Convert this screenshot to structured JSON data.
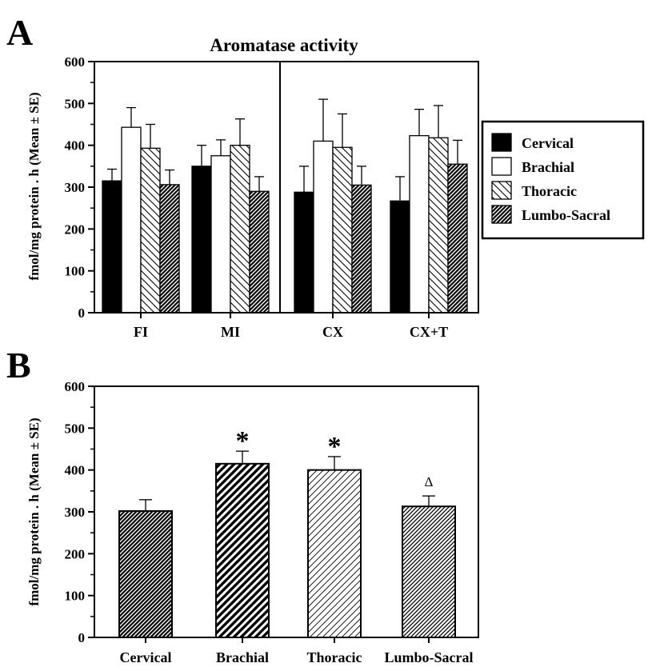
{
  "figure": {
    "panel_a_letter": "A",
    "panel_b_letter": "B"
  },
  "chart_data": [
    {
      "type": "bar",
      "title": "Aromatase activity",
      "ylabel": "fmol/mg protein . h (Mean ± SE)",
      "xlabel": "",
      "ylim": [
        0,
        600
      ],
      "yticks": [
        0,
        100,
        200,
        300,
        400,
        500,
        600
      ],
      "categories": [
        "FI",
        "MI",
        "CX",
        "CX+T"
      ],
      "series": [
        {
          "name": "Cervical",
          "pattern": "solid-black",
          "values": [
            315,
            350,
            288,
            267
          ],
          "errors": [
            28,
            50,
            62,
            58
          ]
        },
        {
          "name": "Brachial",
          "pattern": "white",
          "values": [
            443,
            375,
            410,
            423
          ],
          "errors": [
            47,
            38,
            100,
            63
          ]
        },
        {
          "name": "Thoracic",
          "pattern": "sparse-hatch",
          "values": [
            393,
            400,
            395,
            418
          ],
          "errors": [
            57,
            63,
            80,
            77
          ]
        },
        {
          "name": "Lumbo-Sacral",
          "pattern": "dense-hatch",
          "values": [
            306,
            290,
            305,
            355
          ],
          "errors": [
            35,
            35,
            45,
            57
          ]
        }
      ],
      "divider_after_category": 1,
      "legend_placement": "right",
      "grid": false
    },
    {
      "type": "bar",
      "title": "",
      "ylabel": "fmol/mg protein . h (Mean ± SE)",
      "xlabel": "",
      "ylim": [
        0,
        600
      ],
      "yticks": [
        0,
        100,
        200,
        300,
        400,
        500,
        600
      ],
      "categories": [
        "Cervical",
        "Brachial",
        "Thoracic",
        "Lumbo-Sacral"
      ],
      "values": [
        302,
        415,
        400,
        313
      ],
      "errors": [
        27,
        30,
        32,
        25
      ],
      "patterns": [
        "dense-hatch",
        "wide-hatch",
        "light-hatch",
        "fine-hatch"
      ],
      "annotations": [
        "",
        "*",
        "*",
        "Δ"
      ],
      "grid": false
    }
  ]
}
